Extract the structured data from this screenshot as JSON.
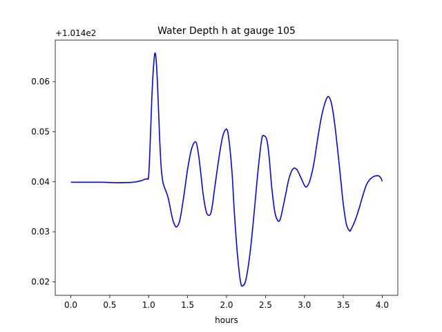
{
  "chart_data": {
    "type": "line",
    "title": "Water Depth h at gauge 105",
    "xlabel": "hours",
    "ylabel": "",
    "offset_label": "+1.014e2",
    "xlim": [
      -0.2,
      4.2
    ],
    "ylim": [
      0.0173,
      0.0683
    ],
    "xticks": [
      0.0,
      0.5,
      1.0,
      1.5,
      2.0,
      2.5,
      3.0,
      3.5,
      4.0
    ],
    "xtick_labels": [
      "0.0",
      "0.5",
      "1.0",
      "1.5",
      "2.0",
      "2.5",
      "3.0",
      "3.5",
      "4.0"
    ],
    "yticks": [
      0.02,
      0.03,
      0.04,
      0.05,
      0.06
    ],
    "ytick_labels": [
      "0.02",
      "0.03",
      "0.04",
      "0.05",
      "0.06"
    ],
    "grid": false,
    "line_color": "#0000ff",
    "series": [
      {
        "x": [
          0.0,
          0.2,
          0.4,
          0.6,
          0.8,
          0.9,
          0.95,
          0.98,
          1.0,
          1.02,
          1.04,
          1.06,
          1.08,
          1.1,
          1.12,
          1.14,
          1.16,
          1.18,
          1.2,
          1.25,
          1.3,
          1.33,
          1.36,
          1.4,
          1.45,
          1.5,
          1.55,
          1.6,
          1.63,
          1.66,
          1.7,
          1.74,
          1.78,
          1.81,
          1.85,
          1.9,
          1.95,
          2.0,
          2.03,
          2.07,
          2.1,
          2.14,
          2.18,
          2.21,
          2.25,
          2.3,
          2.35,
          2.4,
          2.45,
          2.48,
          2.52,
          2.55,
          2.58,
          2.62,
          2.66,
          2.69,
          2.72,
          2.76,
          2.8,
          2.85,
          2.9,
          2.95,
          3.0,
          3.03,
          3.07,
          3.12,
          3.17,
          3.22,
          3.27,
          3.31,
          3.35,
          3.39,
          3.43,
          3.47,
          3.5,
          3.54,
          3.58,
          3.6,
          3.65,
          3.7,
          3.75,
          3.8,
          3.85,
          3.9,
          3.95,
          3.98,
          4.0
        ],
        "y": [
          0.0399,
          0.0399,
          0.0399,
          0.0398,
          0.0399,
          0.0402,
          0.0405,
          0.0406,
          0.0412,
          0.048,
          0.0565,
          0.0625,
          0.0657,
          0.0635,
          0.057,
          0.049,
          0.043,
          0.0402,
          0.039,
          0.0368,
          0.033,
          0.0315,
          0.031,
          0.0323,
          0.037,
          0.0425,
          0.0465,
          0.048,
          0.0465,
          0.043,
          0.0375,
          0.034,
          0.0333,
          0.0345,
          0.039,
          0.0445,
          0.049,
          0.0505,
          0.0485,
          0.042,
          0.034,
          0.0255,
          0.02,
          0.0192,
          0.0205,
          0.0255,
          0.033,
          0.0415,
          0.0483,
          0.0492,
          0.0482,
          0.0445,
          0.039,
          0.034,
          0.0322,
          0.0325,
          0.0345,
          0.0375,
          0.0405,
          0.0425,
          0.0425,
          0.041,
          0.0393,
          0.039,
          0.0402,
          0.0435,
          0.0485,
          0.053,
          0.056,
          0.057,
          0.0555,
          0.0515,
          0.046,
          0.04,
          0.0355,
          0.0315,
          0.0302,
          0.0305,
          0.0322,
          0.0345,
          0.0372,
          0.0395,
          0.0406,
          0.0411,
          0.0412,
          0.0408,
          0.0401
        ]
      }
    ]
  }
}
